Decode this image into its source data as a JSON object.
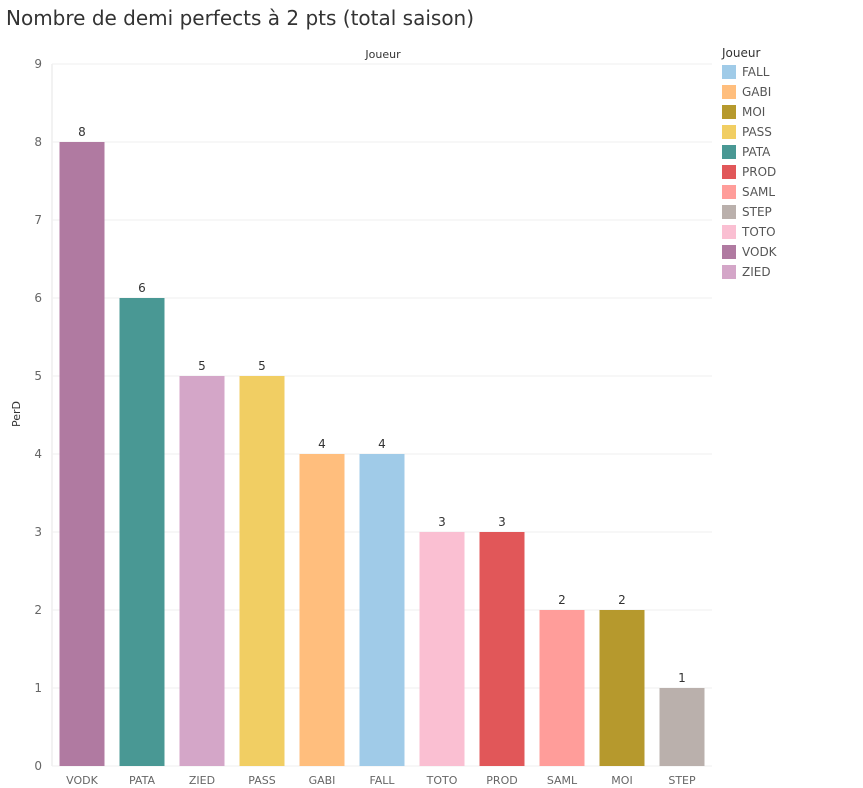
{
  "chart_data": {
    "type": "bar",
    "title": "Nombre de demi perfects à 2 pts (total saison)",
    "column_header": "Joueur",
    "xlabel": "",
    "ylabel": "PerD",
    "ylim": [
      0,
      9
    ],
    "yticks": [
      0,
      1,
      2,
      3,
      4,
      5,
      6,
      7,
      8,
      9
    ],
    "categories": [
      "VODK",
      "PATA",
      "ZIED",
      "PASS",
      "GABI",
      "FALL",
      "TOTO",
      "PROD",
      "SAML",
      "MOI",
      "STEP"
    ],
    "values": [
      8,
      6,
      5,
      5,
      4,
      4,
      3,
      3,
      2,
      2,
      1
    ],
    "bar_colors": [
      "#b07aa1",
      "#499894",
      "#d4a6c8",
      "#f1ce63",
      "#ffbe7d",
      "#a0cbe8",
      "#fabfd2",
      "#e15759",
      "#ff9d9a",
      "#b6992d",
      "#bab0ac"
    ],
    "legend": {
      "title": "Joueur",
      "position": "right",
      "items": [
        {
          "label": "FALL",
          "color": "#a0cbe8"
        },
        {
          "label": "GABI",
          "color": "#ffbe7d"
        },
        {
          "label": "MOI",
          "color": "#b6992d"
        },
        {
          "label": "PASS",
          "color": "#f1ce63"
        },
        {
          "label": "PATA",
          "color": "#499894"
        },
        {
          "label": "PROD",
          "color": "#e15759"
        },
        {
          "label": "SAML",
          "color": "#ff9d9a"
        },
        {
          "label": "STEP",
          "color": "#bab0ac"
        },
        {
          "label": "TOTO",
          "color": "#fabfd2"
        },
        {
          "label": "VODK",
          "color": "#b07aa1"
        },
        {
          "label": "ZIED",
          "color": "#d4a6c8"
        }
      ]
    }
  }
}
